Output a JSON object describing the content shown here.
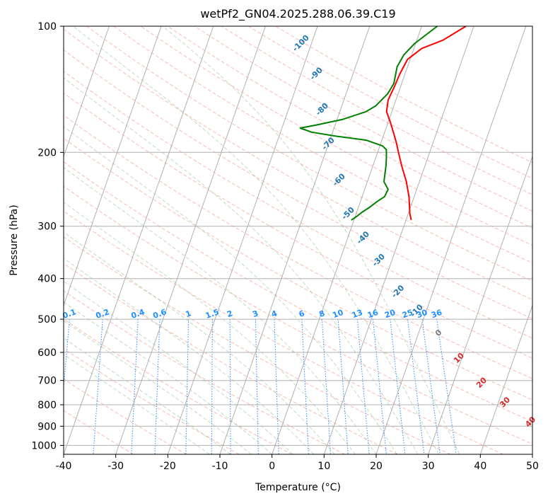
{
  "chart_data": {
    "type": "line",
    "title": "wetPf2_GN04.2025.288.06.39.C19",
    "xlabel": "Temperature (°C)",
    "ylabel": "Pressure (hPa)",
    "xlim": [
      -40,
      50
    ],
    "ylim": [
      1050,
      100
    ],
    "yscale": "log",
    "grid": true,
    "x_ticks": [
      -40,
      -30,
      -20,
      -10,
      0,
      10,
      20,
      30,
      40,
      50
    ],
    "y_ticks": [
      100,
      200,
      300,
      400,
      500,
      600,
      700,
      800,
      900,
      1000
    ],
    "isotherm_labels": [
      {
        "text": "-100",
        "p": 110,
        "t": -22
      },
      {
        "text": "-90",
        "p": 130,
        "t": -17
      },
      {
        "text": "-80",
        "p": 158,
        "t": -13.5
      },
      {
        "text": "-70",
        "p": 191,
        "t": -10
      },
      {
        "text": "-60",
        "p": 233,
        "t": -5.5
      },
      {
        "text": "-50",
        "p": 280,
        "t": -1.5
      },
      {
        "text": "-40",
        "p": 320,
        "t": 3
      },
      {
        "text": "-30",
        "p": 362,
        "t": 7.5
      },
      {
        "text": "-20",
        "p": 430,
        "t": 13.3
      },
      {
        "text": "-10",
        "p": 478,
        "t": 18.2
      },
      {
        "text": "0",
        "p": 540,
        "t": 23.9
      },
      {
        "text": "10",
        "p": 620,
        "t": 29.5
      },
      {
        "text": "20",
        "p": 710,
        "t": 35.5
      },
      {
        "text": "30",
        "p": 790,
        "t": 41.3
      },
      {
        "text": "40",
        "p": 880,
        "t": 47.5
      }
    ],
    "mixing_ratio_labels": [
      "0.1",
      "0.2",
      "0.4",
      "0.6",
      "1",
      "1.5",
      "2",
      "3",
      "4",
      "6",
      "8",
      "10",
      "13",
      "16",
      "20",
      "25",
      "30",
      "36"
    ],
    "series": [
      {
        "name": "",
        "color": "#ff0000",
        "points": [
          [
            8.5,
            100
          ],
          [
            5,
            108
          ],
          [
            1.5,
            113
          ],
          [
            -0.5,
            120
          ],
          [
            -1,
            130
          ],
          [
            -1.2,
            140
          ],
          [
            -1.5,
            150
          ],
          [
            -1,
            160
          ],
          [
            0.5,
            170
          ],
          [
            1.8,
            180
          ],
          [
            3,
            190
          ],
          [
            4,
            200
          ],
          [
            5.5,
            215
          ],
          [
            7.5,
            235
          ],
          [
            9,
            255
          ],
          [
            9.8,
            270
          ],
          [
            10.3,
            280
          ],
          [
            11,
            290
          ]
        ]
      },
      {
        "name": "",
        "color": "#008000",
        "points": [
          [
            3,
            100
          ],
          [
            -0.2,
            110
          ],
          [
            -1.5,
            117
          ],
          [
            -2,
            125
          ],
          [
            -1.5,
            137
          ],
          [
            -2,
            145
          ],
          [
            -3.5,
            155
          ],
          [
            -5,
            160
          ],
          [
            -9,
            167
          ],
          [
            -13.5,
            172
          ],
          [
            -16.5,
            175
          ],
          [
            -14,
            179
          ],
          [
            -9,
            183
          ],
          [
            -3,
            187
          ],
          [
            0.5,
            193
          ],
          [
            1.5,
            197
          ],
          [
            2,
            205
          ],
          [
            2.5,
            215
          ],
          [
            3.2,
            235
          ],
          [
            4.5,
            245
          ],
          [
            4.3,
            255
          ],
          [
            3.2,
            262
          ],
          [
            2.2,
            270
          ],
          [
            1,
            278
          ],
          [
            0.2,
            285
          ],
          [
            -0.5,
            290
          ]
        ]
      }
    ],
    "colors": {
      "temperature": "#ff0000",
      "dewpoint": "#008000",
      "isotherm_label": "#1f77b4",
      "mixing_ratio": "#1e90ff",
      "dry_adiabat": "#fa8072",
      "moist_adiabat": "#90c890",
      "isotherm_label_warm": "#d62728",
      "zero_label": "#808080"
    }
  }
}
